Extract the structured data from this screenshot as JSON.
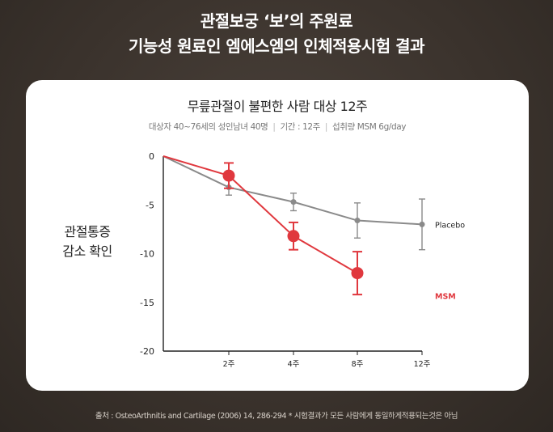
{
  "header": {
    "line1": "관절보궁 ‘보’의 주원료",
    "line2": "기능성 원료인 엠에스엠의 인체적용시험 결과"
  },
  "chart_data": {
    "type": "line",
    "title": "무릎관절이 불편한 사람 대상 12주",
    "subtitle_parts": [
      "대상자 40~76세의 성인남녀 40명",
      "기간 : 12주",
      "섭취량 MSM 6g/day"
    ],
    "ylabel_lines": [
      "관절통증",
      "감소 확인"
    ],
    "x_ticks": [
      {
        "value": 2,
        "label": "2주"
      },
      {
        "value": 4,
        "label": "4주"
      },
      {
        "value": 8,
        "label": "8주"
      },
      {
        "value": 12,
        "label": "12주"
      }
    ],
    "y_ticks": [
      0,
      -5,
      -10,
      -15,
      -20
    ],
    "ylim": [
      -20,
      0
    ],
    "grid": false,
    "series": [
      {
        "name": "Placebo",
        "color": "#8a8a8a",
        "points": [
          {
            "x": 0,
            "y": 0
          },
          {
            "x": 2,
            "y": -3.2,
            "err": 0.8
          },
          {
            "x": 4,
            "y": -4.7,
            "err": 0.9
          },
          {
            "x": 8,
            "y": -6.6,
            "err": 1.8
          },
          {
            "x": 12,
            "y": -7.0,
            "err": 2.6
          }
        ]
      },
      {
        "name": "MSM",
        "color": "#e0383e",
        "points": [
          {
            "x": 0,
            "y": 0
          },
          {
            "x": 2,
            "y": -2.0,
            "err": 1.3
          },
          {
            "x": 4,
            "y": -8.2,
            "err": 1.4
          },
          {
            "x": 8,
            "y": -12.0,
            "err": 2.2
          }
        ]
      }
    ]
  },
  "footer": {
    "text": "출처 : OsteoArthnitis and Cartilage (2006) 14, 286-294 * 시험결과가 모든 사람에게 동일하게적용되는것은 아님"
  }
}
